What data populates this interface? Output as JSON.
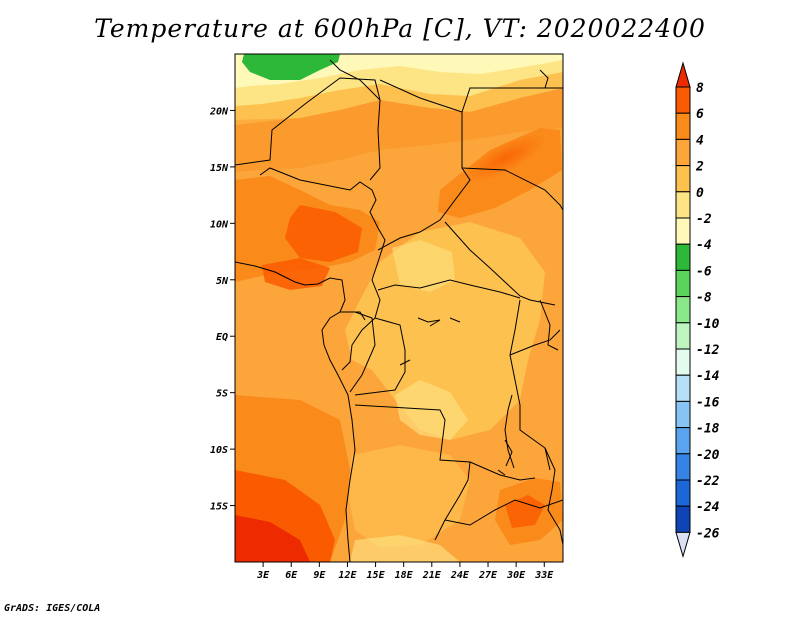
{
  "title": "Temperature at 600hPa [C], VT: 2020022400",
  "credit": "GrADS: IGES/COLA",
  "chart_data": {
    "type": "heatmap",
    "title": "Temperature at 600hPa [C], VT: 2020022400",
    "variable": "Temperature",
    "level": "600hPa",
    "units": "C",
    "valid_time": "2020022400",
    "lon_range": [
      0,
      35
    ],
    "lat_range": [
      -20,
      25
    ],
    "x_ticks": [
      "3E",
      "6E",
      "9E",
      "12E",
      "15E",
      "18E",
      "21E",
      "24E",
      "27E",
      "30E",
      "33E"
    ],
    "x_tick_values": [
      3,
      6,
      9,
      12,
      15,
      18,
      21,
      24,
      27,
      30,
      33
    ],
    "y_ticks": [
      "20N",
      "15N",
      "10N",
      "5N",
      "EQ",
      "5S",
      "10S",
      "15S"
    ],
    "y_tick_values": [
      20,
      15,
      10,
      5,
      0,
      -5,
      -10,
      -15
    ],
    "colorbar": {
      "labels": [
        "8",
        "6",
        "4",
        "2",
        "0",
        "-2",
        "-4",
        "-6",
        "-8",
        "-10",
        "-12",
        "-14",
        "-16",
        "-18",
        "-20",
        "-22",
        "-24",
        "-26"
      ],
      "colors": [
        "#ee2b00",
        "#fa5a00",
        "#fa8a1a",
        "#fca53a",
        "#fdc150",
        "#fde585",
        "#fef8b9",
        "#2eb83a",
        "#5ad45a",
        "#8ae88a",
        "#bef5be",
        "#e3fbef",
        "#b6def6",
        "#87c3f3",
        "#5aa4ef",
        "#3583e5",
        "#1c66d8",
        "#0f44b6",
        "#0a2a80"
      ],
      "colors_order": "top_to_bottom"
    }
  }
}
